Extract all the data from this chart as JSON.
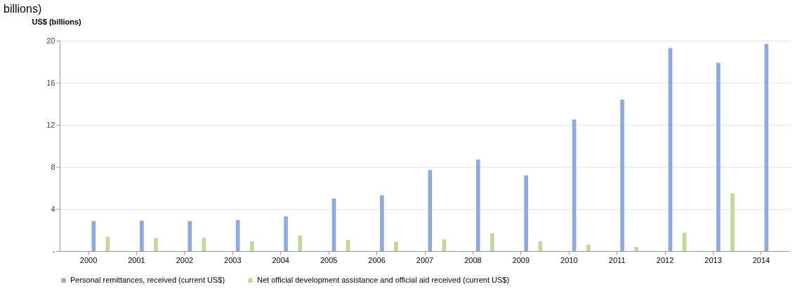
{
  "chart_data": {
    "type": "bar",
    "title": "billions)",
    "ylabel": "US$ (billions)",
    "categories": [
      "2000",
      "2001",
      "2002",
      "2003",
      "2004",
      "2005",
      "2006",
      "2007",
      "2008",
      "2009",
      "2010",
      "2011",
      "2012",
      "2013",
      "2014"
    ],
    "series": [
      {
        "name": "Personal remittances, received (current US$)",
        "color": "#8eaad8",
        "values": [
          2.85,
          2.9,
          2.85,
          2.95,
          3.3,
          5.0,
          5.3,
          7.7,
          8.7,
          7.2,
          12.5,
          14.4,
          19.3,
          17.9,
          19.7
        ]
      },
      {
        "name": "Net official development assistance and official aid received (current US$)",
        "color": "#c3d69b",
        "values": [
          1.35,
          1.25,
          1.25,
          0.95,
          1.5,
          1.05,
          0.9,
          1.1,
          1.7,
          0.95,
          0.6,
          0.4,
          1.75,
          5.5,
          null
        ]
      }
    ],
    "ylim": [
      0,
      20
    ],
    "yticks": [
      {
        "value": 0,
        "label": "-"
      },
      4,
      8,
      12,
      16,
      20
    ],
    "grid": "y",
    "legend": "bottom"
  }
}
